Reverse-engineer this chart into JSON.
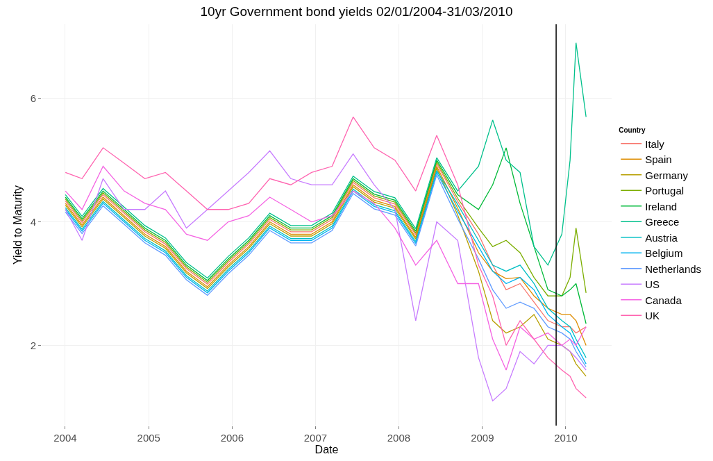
{
  "chart_data": {
    "type": "line",
    "title": "10yr Government bond yields 02/01/2004-31/03/2010",
    "xlabel": "Date",
    "ylabel": "Yield to Maturity",
    "legend_title": "Country",
    "x": [
      "2004-01-02",
      "2004-03-15",
      "2004-06-15",
      "2004-09-15",
      "2004-12-15",
      "2005-03-15",
      "2005-06-15",
      "2005-09-15",
      "2005-12-15",
      "2006-03-15",
      "2006-06-15",
      "2006-09-15",
      "2006-12-15",
      "2007-03-15",
      "2007-06-15",
      "2007-09-15",
      "2007-12-15",
      "2008-03-15",
      "2008-06-15",
      "2008-09-15",
      "2008-12-15",
      "2009-02-15",
      "2009-04-15",
      "2009-06-15",
      "2009-08-15",
      "2009-10-15",
      "2009-12-15",
      "2010-01-20",
      "2010-02-15",
      "2010-03-31"
    ],
    "series": [
      {
        "name": "Italy",
        "color": "#F8766D",
        "values": [
          4.34,
          3.99,
          4.44,
          4.14,
          3.84,
          3.64,
          3.24,
          2.99,
          3.34,
          3.64,
          4.04,
          3.84,
          3.84,
          4.04,
          4.64,
          4.39,
          4.29,
          3.79,
          4.94,
          4.33,
          3.8,
          3.3,
          2.9,
          3.0,
          2.7,
          2.4,
          2.3,
          2.3,
          2.2,
          2.3
        ]
      },
      {
        "name": "Spain",
        "color": "#DE8C00",
        "values": [
          4.3,
          3.95,
          4.4,
          4.1,
          3.8,
          3.6,
          3.2,
          2.95,
          3.3,
          3.6,
          4.0,
          3.8,
          3.8,
          4.0,
          4.6,
          4.35,
          4.25,
          3.75,
          4.9,
          4.22,
          3.5,
          3.2,
          3.08,
          3.1,
          2.8,
          2.6,
          2.5,
          2.5,
          2.4,
          2.0
        ]
      },
      {
        "name": "Germany",
        "color": "#B79F00",
        "values": [
          4.27,
          3.92,
          4.37,
          4.07,
          3.77,
          3.57,
          3.17,
          2.92,
          3.27,
          3.57,
          3.97,
          3.77,
          3.77,
          3.97,
          4.57,
          4.32,
          4.22,
          3.72,
          4.87,
          4.11,
          3.2,
          2.4,
          2.2,
          2.3,
          2.5,
          2.1,
          2.0,
          1.9,
          1.7,
          1.5
        ]
      },
      {
        "name": "Portugal",
        "color": "#7CAE00",
        "values": [
          4.37,
          4.02,
          4.47,
          4.17,
          3.87,
          3.67,
          3.27,
          3.02,
          3.37,
          3.67,
          4.07,
          3.87,
          3.87,
          4.07,
          4.67,
          4.42,
          4.32,
          3.82,
          4.97,
          4.38,
          3.9,
          3.6,
          3.7,
          3.5,
          3.1,
          2.8,
          2.8,
          3.1,
          3.9,
          2.85
        ]
      },
      {
        "name": "Ireland",
        "color": "#00BA38",
        "values": [
          4.4,
          4.05,
          4.5,
          4.2,
          3.9,
          3.7,
          3.3,
          3.05,
          3.4,
          3.7,
          4.1,
          3.9,
          3.9,
          4.1,
          4.7,
          4.45,
          4.35,
          3.85,
          5.0,
          4.44,
          4.2,
          4.6,
          5.2,
          4.3,
          3.6,
          2.9,
          2.8,
          2.9,
          3.0,
          2.35
        ]
      },
      {
        "name": "Greece",
        "color": "#00C08B",
        "values": [
          4.44,
          4.09,
          4.54,
          4.24,
          3.94,
          3.74,
          3.34,
          3.09,
          3.44,
          3.74,
          4.14,
          3.94,
          3.94,
          4.14,
          4.74,
          4.49,
          4.39,
          3.89,
          5.04,
          4.5,
          4.9,
          5.65,
          5.0,
          4.8,
          3.6,
          3.3,
          3.8,
          5.0,
          6.9,
          5.7
        ]
      },
      {
        "name": "Austria",
        "color": "#00BFC4",
        "values": [
          4.23,
          3.88,
          4.33,
          4.03,
          3.73,
          3.53,
          3.13,
          2.88,
          3.23,
          3.53,
          3.93,
          3.73,
          3.73,
          3.93,
          4.53,
          4.28,
          4.18,
          3.68,
          4.83,
          4.28,
          3.7,
          3.3,
          3.2,
          3.3,
          3.0,
          2.6,
          2.4,
          2.3,
          2.1,
          1.8
        ]
      },
      {
        "name": "Belgium",
        "color": "#00B4F0",
        "values": [
          4.2,
          3.85,
          4.3,
          4.0,
          3.7,
          3.5,
          3.1,
          2.85,
          3.2,
          3.5,
          3.9,
          3.7,
          3.7,
          3.9,
          4.5,
          4.25,
          4.15,
          3.65,
          4.8,
          4.17,
          3.6,
          3.2,
          3.0,
          3.1,
          2.9,
          2.5,
          2.3,
          2.2,
          2.0,
          1.7
        ]
      },
      {
        "name": "Netherlands",
        "color": "#619CFF",
        "values": [
          4.16,
          3.81,
          4.26,
          3.96,
          3.66,
          3.46,
          3.06,
          2.81,
          3.16,
          3.46,
          3.86,
          3.66,
          3.66,
          3.86,
          4.46,
          4.21,
          4.11,
          3.61,
          4.76,
          4.05,
          3.4,
          2.9,
          2.6,
          2.7,
          2.6,
          2.3,
          2.2,
          2.1,
          1.9,
          1.65
        ]
      },
      {
        "name": "US",
        "color": "#C77CFF",
        "values": [
          4.2,
          3.7,
          4.7,
          4.2,
          4.2,
          4.5,
          3.9,
          4.2,
          4.5,
          4.8,
          5.15,
          4.7,
          4.6,
          4.6,
          5.1,
          4.6,
          4.2,
          2.4,
          4.0,
          3.7,
          1.8,
          1.1,
          1.3,
          1.9,
          1.7,
          2.0,
          2.0,
          1.9,
          1.8,
          1.6
        ]
      },
      {
        "name": "Canada",
        "color": "#F564E3",
        "values": [
          4.5,
          4.2,
          4.9,
          4.5,
          4.3,
          4.2,
          3.8,
          3.7,
          4.0,
          4.1,
          4.4,
          4.2,
          4.0,
          4.1,
          4.5,
          4.3,
          3.9,
          3.3,
          3.7,
          3.0,
          3.0,
          2.1,
          1.6,
          2.3,
          2.1,
          2.2,
          2.0,
          2.1,
          2.0,
          2.3
        ]
      },
      {
        "name": "UK",
        "color": "#FF64B0",
        "values": [
          4.8,
          4.7,
          5.2,
          4.95,
          4.7,
          4.8,
          4.5,
          4.2,
          4.2,
          4.3,
          4.7,
          4.6,
          4.8,
          4.9,
          5.7,
          5.2,
          5.0,
          4.5,
          5.4,
          4.6,
          3.3,
          2.8,
          2.0,
          2.4,
          2.1,
          1.8,
          1.6,
          1.5,
          1.3,
          1.15
        ]
      }
    ],
    "xlim": [
      "2003-09-20",
      "2010-07-21"
    ],
    "xticks": [
      {
        "value": "2004-01-01",
        "label": "2004"
      },
      {
        "value": "2005-01-01",
        "label": "2005"
      },
      {
        "value": "2006-01-01",
        "label": "2006"
      },
      {
        "value": "2007-01-01",
        "label": "2007"
      },
      {
        "value": "2008-01-01",
        "label": "2008"
      },
      {
        "value": "2009-01-01",
        "label": "2009"
      },
      {
        "value": "2010-01-01",
        "label": "2010"
      }
    ],
    "ylim": [
      0.7,
      7.2
    ],
    "yticks": [
      2,
      4,
      6
    ],
    "ref_lines": [
      {
        "axis": "x",
        "value": "2009-11-20",
        "color": "#000000"
      }
    ],
    "grid": true,
    "legend": "right",
    "line_style": "solid",
    "marker": "none"
  }
}
